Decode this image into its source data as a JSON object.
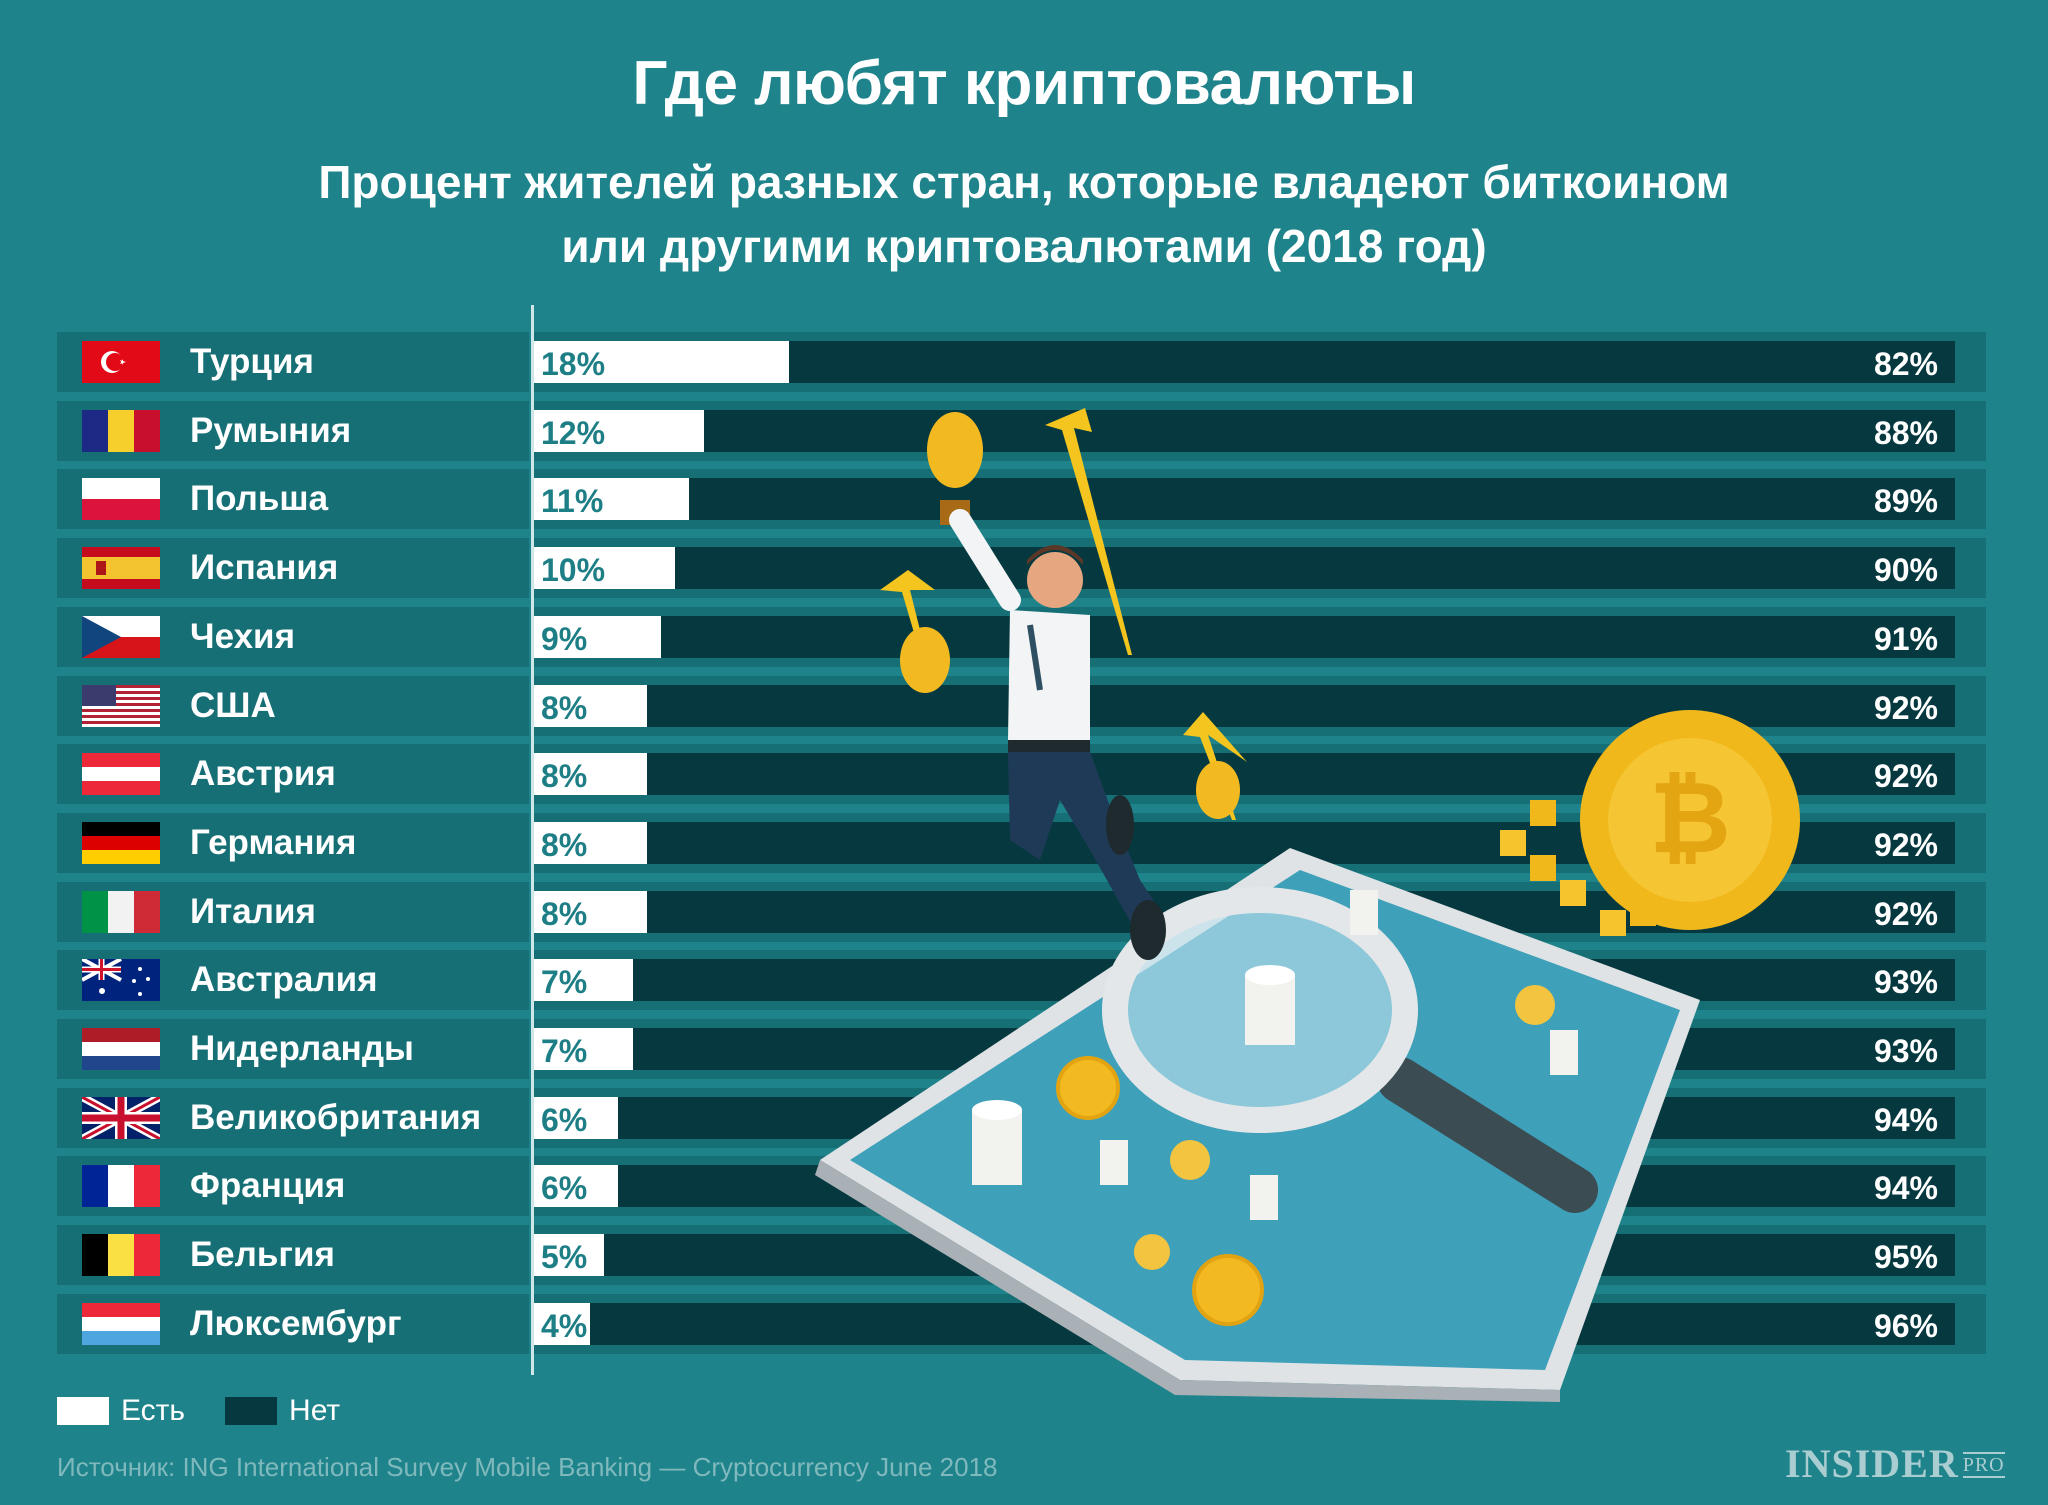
{
  "title": "Где любят криптовалюты",
  "subtitle_line1": "Процент жителей разных стран, которые владеют биткоином",
  "subtitle_line2": "или другими криптовалютами (2018 год)",
  "colors": {
    "background": "#1e838a",
    "row_band": "#176f76",
    "yes": "#ffffff",
    "no": "#06393f",
    "yes_label": "#1e7e85"
  },
  "legend": {
    "yes_label": "Есть",
    "no_label": "Нет"
  },
  "source": "Источник: ING International Survey Mobile Banking — Cryptocurrency June 2018",
  "logo": {
    "main": "INSIDER",
    "suffix": "PRO"
  },
  "chart_data": {
    "type": "bar",
    "orientation": "horizontal-stacked",
    "title": "Где любят криптовалюты",
    "subtitle": "Процент жителей разных стран, которые владеют биткоином или другими криптовалютами (2018 год)",
    "xlabel": "",
    "ylabel": "",
    "xlim": [
      0,
      100
    ],
    "unit": "%",
    "legend_position": "bottom-left",
    "categories": [
      "Турция",
      "Румыния",
      "Польша",
      "Испания",
      "Чехия",
      "США",
      "Австрия",
      "Германия",
      "Италия",
      "Австралия",
      "Нидерланды",
      "Великобритания",
      "Франция",
      "Бельгия",
      "Люксембург"
    ],
    "flags": [
      "turkey-flag",
      "romania-flag",
      "poland-flag",
      "spain-flag",
      "czech-flag",
      "usa-flag",
      "austria-flag",
      "germany-flag",
      "italy-flag",
      "australia-flag",
      "netherlands-flag",
      "uk-flag",
      "france-flag",
      "belgium-flag",
      "luxembourg-flag"
    ],
    "series": [
      {
        "name": "Есть",
        "values": [
          18,
          12,
          11,
          10,
          9,
          8,
          8,
          8,
          8,
          7,
          7,
          6,
          6,
          5,
          4
        ]
      },
      {
        "name": "Нет",
        "values": [
          82,
          88,
          89,
          90,
          91,
          92,
          92,
          92,
          92,
          93,
          93,
          94,
          94,
          95,
          96
        ]
      }
    ],
    "yes_labels": [
      "18%",
      "12%",
      "11%",
      "10%",
      "9%",
      "8%",
      "8%",
      "8%",
      "8%",
      "7%",
      "7%",
      "6%",
      "6%",
      "5%",
      "4%"
    ],
    "no_labels": [
      "82%",
      "88%",
      "89%",
      "90%",
      "91%",
      "92%",
      "92%",
      "92%",
      "92%",
      "93%",
      "93%",
      "94%",
      "94%",
      "95%",
      "96%"
    ]
  }
}
